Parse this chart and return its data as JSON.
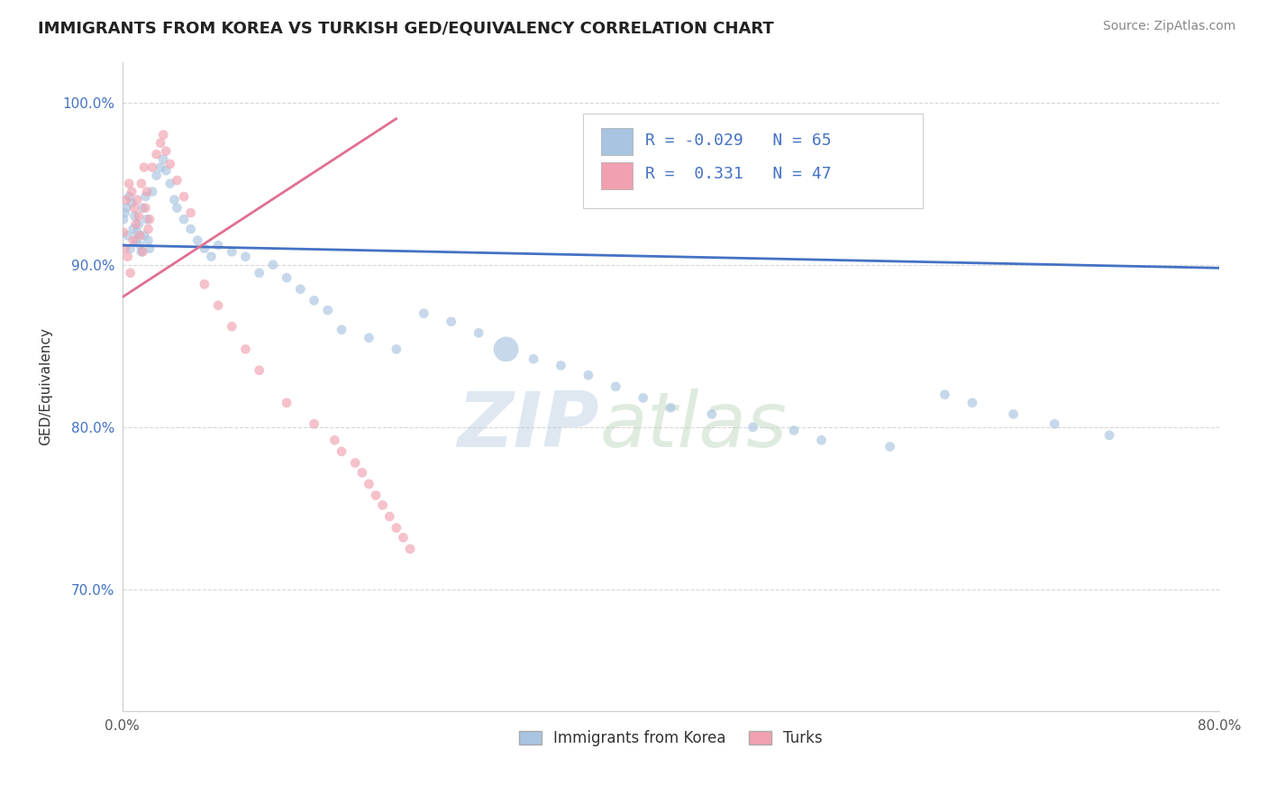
{
  "title": "IMMIGRANTS FROM KOREA VS TURKISH GED/EQUIVALENCY CORRELATION CHART",
  "source": "Source: ZipAtlas.com",
  "ylabel_label": "GED/Equivalency",
  "xlim": [
    0.0,
    0.8
  ],
  "ylim": [
    0.625,
    1.025
  ],
  "xticks": [
    0.0,
    0.2,
    0.4,
    0.6,
    0.8
  ],
  "xticklabels": [
    "0.0%",
    "",
    "",
    "",
    "80.0%"
  ],
  "ytick_positions": [
    0.7,
    0.8,
    0.9,
    1.0
  ],
  "yticklabels": [
    "70.0%",
    "80.0%",
    "90.0%",
    "100.0%"
  ],
  "korea_color": "#a8c4e0",
  "turks_color": "#f0a0b0",
  "korea_line_color": "#4472c4",
  "turks_line_color": "#e07090",
  "korea_R": "-0.029",
  "korea_N": "65",
  "turks_R": "0.331",
  "turks_N": "47",
  "legend_label_korea": "Immigrants from Korea",
  "legend_label_turks": "Turks",
  "watermark_zip": "ZIP",
  "watermark_atlas": "atlas",
  "background_color": "#ffffff",
  "grid_color": "#cccccc",
  "korea_line_x0": 0.0,
  "korea_line_y0": 0.912,
  "korea_line_x1": 0.8,
  "korea_line_y1": 0.898,
  "turks_line_x0": 0.0,
  "turks_line_y0": 0.88,
  "turks_line_x1": 0.2,
  "turks_line_y1": 0.99,
  "korea_scatter_x": [
    0.001,
    0.002,
    0.003,
    0.004,
    0.005,
    0.006,
    0.007,
    0.008,
    0.009,
    0.01,
    0.011,
    0.012,
    0.013,
    0.014,
    0.015,
    0.016,
    0.017,
    0.018,
    0.019,
    0.02,
    0.022,
    0.025,
    0.028,
    0.03,
    0.032,
    0.035,
    0.038,
    0.04,
    0.045,
    0.05,
    0.055,
    0.06,
    0.065,
    0.07,
    0.08,
    0.09,
    0.1,
    0.11,
    0.12,
    0.13,
    0.14,
    0.15,
    0.16,
    0.18,
    0.2,
    0.22,
    0.24,
    0.26,
    0.28,
    0.3,
    0.32,
    0.34,
    0.36,
    0.38,
    0.4,
    0.43,
    0.46,
    0.49,
    0.51,
    0.56,
    0.6,
    0.62,
    0.65,
    0.68,
    0.72
  ],
  "korea_scatter_y": [
    0.928,
    0.932,
    0.935,
    0.918,
    0.942,
    0.91,
    0.938,
    0.922,
    0.93,
    0.915,
    0.92,
    0.925,
    0.912,
    0.908,
    0.935,
    0.918,
    0.942,
    0.928,
    0.915,
    0.91,
    0.945,
    0.955,
    0.96,
    0.965,
    0.958,
    0.95,
    0.94,
    0.935,
    0.928,
    0.922,
    0.915,
    0.91,
    0.905,
    0.912,
    0.908,
    0.905,
    0.895,
    0.9,
    0.892,
    0.885,
    0.878,
    0.872,
    0.86,
    0.855,
    0.848,
    0.87,
    0.865,
    0.858,
    0.848,
    0.842,
    0.838,
    0.832,
    0.825,
    0.818,
    0.812,
    0.808,
    0.8,
    0.798,
    0.792,
    0.788,
    0.82,
    0.815,
    0.808,
    0.802,
    0.795
  ],
  "korea_scatter_size": [
    60,
    60,
    60,
    60,
    60,
    60,
    60,
    60,
    60,
    60,
    60,
    60,
    60,
    60,
    60,
    60,
    60,
    60,
    60,
    60,
    60,
    60,
    60,
    60,
    60,
    60,
    60,
    60,
    60,
    60,
    60,
    60,
    60,
    60,
    60,
    60,
    60,
    60,
    60,
    60,
    60,
    60,
    60,
    60,
    60,
    60,
    60,
    60,
    400,
    60,
    60,
    60,
    60,
    60,
    60,
    60,
    60,
    60,
    60,
    60,
    60,
    60,
    60,
    60,
    60
  ],
  "turks_scatter_x": [
    0.001,
    0.002,
    0.003,
    0.004,
    0.005,
    0.006,
    0.007,
    0.008,
    0.009,
    0.01,
    0.011,
    0.012,
    0.013,
    0.014,
    0.015,
    0.016,
    0.017,
    0.018,
    0.019,
    0.02,
    0.022,
    0.025,
    0.028,
    0.03,
    0.032,
    0.035,
    0.04,
    0.045,
    0.05,
    0.06,
    0.07,
    0.08,
    0.09,
    0.1,
    0.12,
    0.14,
    0.155,
    0.16,
    0.17,
    0.175,
    0.18,
    0.185,
    0.19,
    0.195,
    0.2,
    0.205,
    0.21
  ],
  "turks_scatter_y": [
    0.92,
    0.91,
    0.94,
    0.905,
    0.95,
    0.895,
    0.945,
    0.915,
    0.935,
    0.925,
    0.94,
    0.93,
    0.918,
    0.95,
    0.908,
    0.96,
    0.935,
    0.945,
    0.922,
    0.928,
    0.96,
    0.968,
    0.975,
    0.98,
    0.97,
    0.962,
    0.952,
    0.942,
    0.932,
    0.888,
    0.875,
    0.862,
    0.848,
    0.835,
    0.815,
    0.802,
    0.792,
    0.785,
    0.778,
    0.772,
    0.765,
    0.758,
    0.752,
    0.745,
    0.738,
    0.732,
    0.725
  ],
  "turks_scatter_size": [
    60,
    60,
    60,
    60,
    60,
    60,
    60,
    60,
    60,
    60,
    60,
    60,
    60,
    60,
    60,
    60,
    60,
    60,
    60,
    60,
    60,
    60,
    60,
    60,
    60,
    60,
    60,
    60,
    60,
    60,
    60,
    60,
    60,
    60,
    60,
    60,
    60,
    60,
    60,
    60,
    60,
    60,
    60,
    60,
    60,
    60,
    60
  ]
}
